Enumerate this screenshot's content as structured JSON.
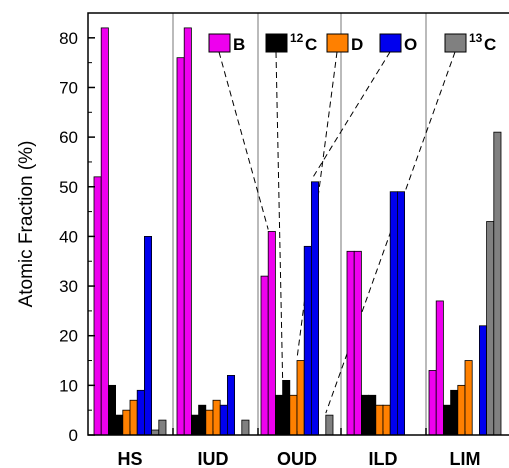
{
  "chart_data": {
    "type": "bar",
    "ylabel": "Atomic Fraction (%)",
    "xlabel": "",
    "ylim": [
      0,
      85
    ],
    "yticks": [
      0,
      10,
      20,
      30,
      40,
      50,
      60,
      70,
      80
    ],
    "grid": false,
    "legend_position": "top",
    "categories": [
      "HS",
      "IUD",
      "OUD",
      "ILD",
      "LIM"
    ],
    "series": [
      {
        "name": "B",
        "sup": "",
        "color": "#ee00ee",
        "values": [
          [
            52,
            82
          ],
          [
            76,
            82
          ],
          [
            32,
            41
          ],
          [
            37,
            37
          ],
          [
            13,
            27
          ]
        ]
      },
      {
        "name": "C",
        "sup": "12",
        "color": "#000000",
        "values": [
          [
            10,
            4
          ],
          [
            4,
            6
          ],
          [
            8,
            11
          ],
          [
            8,
            8
          ],
          [
            6,
            9
          ]
        ]
      },
      {
        "name": "D",
        "sup": "",
        "color": "#ff8000",
        "values": [
          [
            5,
            7
          ],
          [
            5,
            7
          ],
          [
            8,
            15
          ],
          [
            6,
            6
          ],
          [
            10,
            15
          ]
        ]
      },
      {
        "name": "O",
        "sup": "",
        "color": "#0000ee",
        "values": [
          [
            9,
            40
          ],
          [
            6,
            12
          ],
          [
            38,
            51
          ],
          [
            49,
            49
          ],
          [
            0,
            22
          ]
        ]
      },
      {
        "name": "C",
        "sup": "13",
        "color": "#808080",
        "values": [
          [
            1,
            3
          ],
          [
            0,
            3
          ],
          [
            0,
            4
          ],
          [
            0,
            0
          ],
          [
            43,
            61
          ]
        ]
      }
    ]
  }
}
